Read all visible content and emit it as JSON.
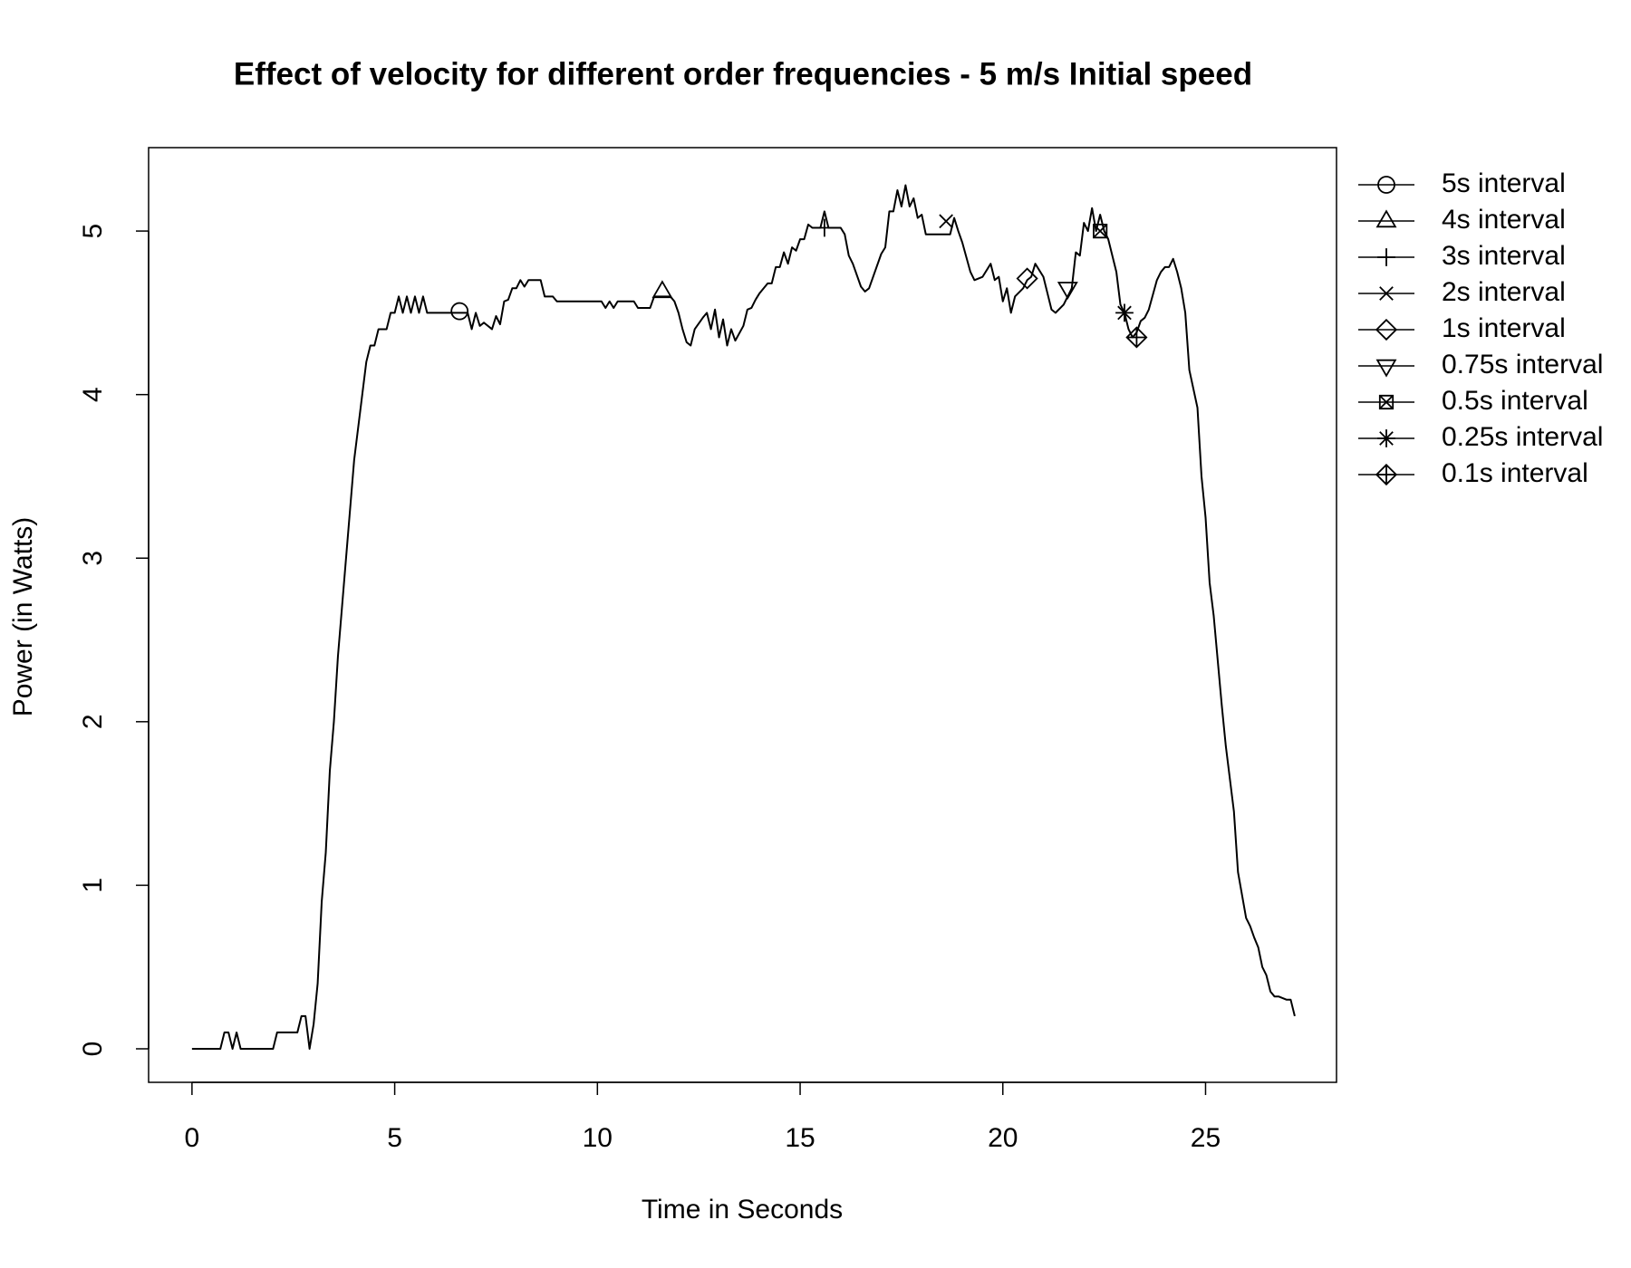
{
  "chart_data": {
    "type": "line",
    "title": "Effect of velocity for different order frequencies - 5 m/s Initial speed",
    "x_label": "Time in Seconds",
    "y_label": "Power (in Watts)",
    "xlim": [
      -1.07,
      28.23
    ],
    "ylim": [
      -0.205,
      5.51
    ],
    "xticks": [
      0,
      5,
      10,
      15,
      20,
      25
    ],
    "yticks": [
      0,
      1,
      2,
      3,
      4,
      5
    ],
    "color": "#000000",
    "line": {
      "x": [
        0,
        0.7,
        0.8,
        0.9,
        1.0,
        1.1,
        1.2,
        2.0,
        2.1,
        2.6,
        2.7,
        2.8,
        2.9,
        3.0,
        3.1,
        3.2,
        3.3,
        3.4,
        3.5,
        3.6,
        3.7,
        3.8,
        3.9,
        4.0,
        4.1,
        4.2,
        4.3,
        4.4,
        4.5,
        4.6,
        4.8,
        4.9,
        5.0,
        5.1,
        5.2,
        5.3,
        5.4,
        5.5,
        5.6,
        5.7,
        5.8,
        6.0,
        6.6,
        6.8,
        6.9,
        7.0,
        7.1,
        7.2,
        7.4,
        7.5,
        7.6,
        7.7,
        7.8,
        7.9,
        8.0,
        8.1,
        8.2,
        8.3,
        8.6,
        8.7,
        8.9,
        9.0,
        10.1,
        10.2,
        10.3,
        10.4,
        10.5,
        10.9,
        11.0,
        11.3,
        11.4,
        11.8,
        11.9,
        12.0,
        12.1,
        12.2,
        12.3,
        12.4,
        12.6,
        12.7,
        12.8,
        12.9,
        13.0,
        13.1,
        13.2,
        13.3,
        13.4,
        13.6,
        13.7,
        13.8,
        13.9,
        14.0,
        14.2,
        14.3,
        14.4,
        14.5,
        14.6,
        14.7,
        14.8,
        14.9,
        15.0,
        15.1,
        15.2,
        15.3,
        15.5,
        15.6,
        15.7,
        16.0,
        16.1,
        16.2,
        16.3,
        16.5,
        16.6,
        16.7,
        16.8,
        17.0,
        17.1,
        17.2,
        17.3,
        17.4,
        17.5,
        17.6,
        17.7,
        17.8,
        17.9,
        18.0,
        18.1,
        18.7,
        18.8,
        18.9,
        19.0,
        19.2,
        19.3,
        19.5,
        19.7,
        19.8,
        19.9,
        20.0,
        20.1,
        20.2,
        20.3,
        20.5,
        20.6,
        20.7,
        20.8,
        21.0,
        21.2,
        21.3,
        21.5,
        21.7,
        21.8,
        21.9,
        22.0,
        22.1,
        22.2,
        22.3,
        22.4,
        22.5,
        22.6,
        22.8,
        22.9,
        23.0,
        23.1,
        23.2,
        23.3,
        23.4,
        23.5,
        23.6,
        23.8,
        23.9,
        24.0,
        24.1,
        24.2,
        24.3,
        24.4,
        24.5,
        24.6,
        24.8,
        24.9,
        25.0,
        25.1,
        25.2,
        25.4,
        25.5,
        25.7,
        25.8,
        26.0,
        26.1,
        26.2,
        26.3,
        26.4,
        26.5,
        26.6,
        26.7,
        26.8,
        27.0,
        27.1,
        27.2
      ],
      "values": [
        0,
        0,
        0.1,
        0.1,
        0,
        0.1,
        0,
        0,
        0.1,
        0.1,
        0.2,
        0.2,
        0,
        0.15,
        0.4,
        0.9,
        1.2,
        1.7,
        2.0,
        2.4,
        2.7,
        3.0,
        3.3,
        3.6,
        3.8,
        4.0,
        4.2,
        4.3,
        4.3,
        4.4,
        4.4,
        4.5,
        4.5,
        4.6,
        4.5,
        4.6,
        4.5,
        4.6,
        4.5,
        4.6,
        4.5,
        4.5,
        4.5,
        4.5,
        4.4,
        4.5,
        4.42,
        4.44,
        4.4,
        4.48,
        4.43,
        4.57,
        4.58,
        4.65,
        4.65,
        4.7,
        4.66,
        4.7,
        4.7,
        4.6,
        4.6,
        4.57,
        4.57,
        4.53,
        4.57,
        4.53,
        4.57,
        4.57,
        4.53,
        4.53,
        4.6,
        4.6,
        4.57,
        4.5,
        4.4,
        4.32,
        4.3,
        4.4,
        4.47,
        4.5,
        4.4,
        4.52,
        4.35,
        4.46,
        4.3,
        4.4,
        4.33,
        4.42,
        4.52,
        4.53,
        4.58,
        4.62,
        4.68,
        4.68,
        4.78,
        4.78,
        4.87,
        4.8,
        4.9,
        4.88,
        4.95,
        4.95,
        5.04,
        5.02,
        5.02,
        5.12,
        5.02,
        5.02,
        4.98,
        4.85,
        4.8,
        4.66,
        4.63,
        4.65,
        4.72,
        4.86,
        4.9,
        5.12,
        5.12,
        5.25,
        5.15,
        5.28,
        5.15,
        5.2,
        5.08,
        5.1,
        4.98,
        4.98,
        5.08,
        5.0,
        4.93,
        4.75,
        4.7,
        4.72,
        4.8,
        4.7,
        4.72,
        4.57,
        4.65,
        4.5,
        4.6,
        4.65,
        4.7,
        4.72,
        4.8,
        4.72,
        4.52,
        4.5,
        4.55,
        4.65,
        4.87,
        4.85,
        5.05,
        5.0,
        5.14,
        5.0,
        5.1,
        5.0,
        4.95,
        4.75,
        4.55,
        4.5,
        4.4,
        4.35,
        4.38,
        4.45,
        4.47,
        4.52,
        4.7,
        4.75,
        4.78,
        4.78,
        4.83,
        4.75,
        4.65,
        4.5,
        4.15,
        3.92,
        3.5,
        3.25,
        2.85,
        2.65,
        2.1,
        1.85,
        1.45,
        1.08,
        0.8,
        0.75,
        0.68,
        0.62,
        0.5,
        0.45,
        0.35,
        0.32,
        0.32,
        0.3,
        0.3,
        0.2
      ]
    },
    "series": [
      {
        "name": "5s interval",
        "marker": "circle",
        "x": [
          6.6
        ],
        "values": [
          4.51
        ]
      },
      {
        "name": "4s interval",
        "marker": "triangle",
        "x": [
          11.6
        ],
        "values": [
          4.63
        ]
      },
      {
        "name": "3s interval",
        "marker": "plus",
        "x": [
          15.6
        ],
        "values": [
          5.02
        ]
      },
      {
        "name": "2s interval",
        "marker": "cross",
        "x": [
          18.6
        ],
        "values": [
          5.06
        ]
      },
      {
        "name": "1s interval",
        "marker": "diamond",
        "x": [
          20.6
        ],
        "values": [
          4.71
        ]
      },
      {
        "name": "0.75s interval",
        "marker": "triangle-down",
        "x": [
          21.6
        ],
        "values": [
          4.65
        ]
      },
      {
        "name": "0.5s interval",
        "marker": "square-cross",
        "x": [
          22.4
        ],
        "values": [
          5.0
        ]
      },
      {
        "name": "0.25s interval",
        "marker": "asterisk",
        "x": [
          23.0
        ],
        "values": [
          4.5
        ]
      },
      {
        "name": "0.1s interval",
        "marker": "diamond-plus",
        "x": [
          23.3
        ],
        "values": [
          4.35
        ]
      }
    ]
  }
}
